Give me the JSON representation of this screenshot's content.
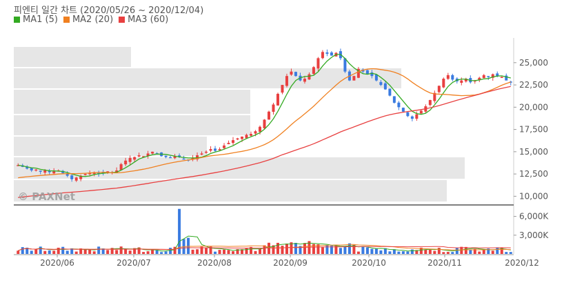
{
  "chart_data": {
    "type": "candlestick",
    "title": "피엔티 일간 차트 (2020/05/26 ~ 2020/12/04)",
    "legend": [
      {
        "name": "MA1 (5)",
        "color": "#33aa22"
      },
      {
        "name": "MA2 (20)",
        "color": "#f08020"
      },
      {
        "name": "MA3 (60)",
        "color": "#e84040"
      }
    ],
    "price_axis": {
      "ticks": [
        "25,000",
        "22,500",
        "20,000",
        "17,500",
        "15,000",
        "12,500",
        "10,000"
      ],
      "values": [
        25000,
        22500,
        20000,
        17500,
        15000,
        12500,
        10000
      ],
      "range": [
        9100,
        27000
      ]
    },
    "volume_axis": {
      "ticks": [
        "6,000K",
        "3,000K"
      ],
      "values": [
        6000,
        3000
      ],
      "range": [
        0,
        7500
      ]
    },
    "x_ticks": [
      "2020/06",
      "2020/07",
      "2020/08",
      "2020/09",
      "2020/10",
      "2020/11",
      "2020/12"
    ],
    "watermark": "© PAXNet",
    "colors": {
      "up": "#e84040",
      "down": "#3a7be0",
      "volume_up": "#e84040",
      "volume_down": "#3a7be0",
      "band": "#e6e6e6"
    },
    "close_series": [
      13500,
      13300,
      13100,
      12900,
      13000,
      12800,
      12900,
      12700,
      12800,
      12900,
      12600,
      12300,
      11900,
      12100,
      12300,
      12500,
      12600,
      12700,
      12500,
      12600,
      12800,
      12700,
      12900,
      13600,
      14000,
      14300,
      14400,
      14600,
      14500,
      14800,
      15000,
      14800,
      14500,
      14400,
      14300,
      14500,
      14400,
      14200,
      14100,
      14300,
      14600,
      14800,
      15000,
      15300,
      15100,
      15300,
      15700,
      16000,
      16300,
      16500,
      16700,
      16900,
      17000,
      17300,
      17800,
      18600,
      19500,
      20300,
      21500,
      22500,
      23500,
      24000,
      23500,
      23000,
      23200,
      23700,
      24500,
      25500,
      26200,
      26000,
      25800,
      26100,
      25500,
      24000,
      23000,
      23500,
      24300,
      24000,
      23700,
      23500,
      23000,
      22500,
      22000,
      21300,
      20500,
      20000,
      19500,
      19000,
      18700,
      19200,
      19600,
      20100,
      20800,
      21600,
      22400,
      23200,
      23600,
      23100,
      22900,
      23000,
      23200,
      22800,
      23000,
      23300,
      23600,
      23400,
      23700,
      23500,
      23400,
      23000,
      22800
    ]
  }
}
